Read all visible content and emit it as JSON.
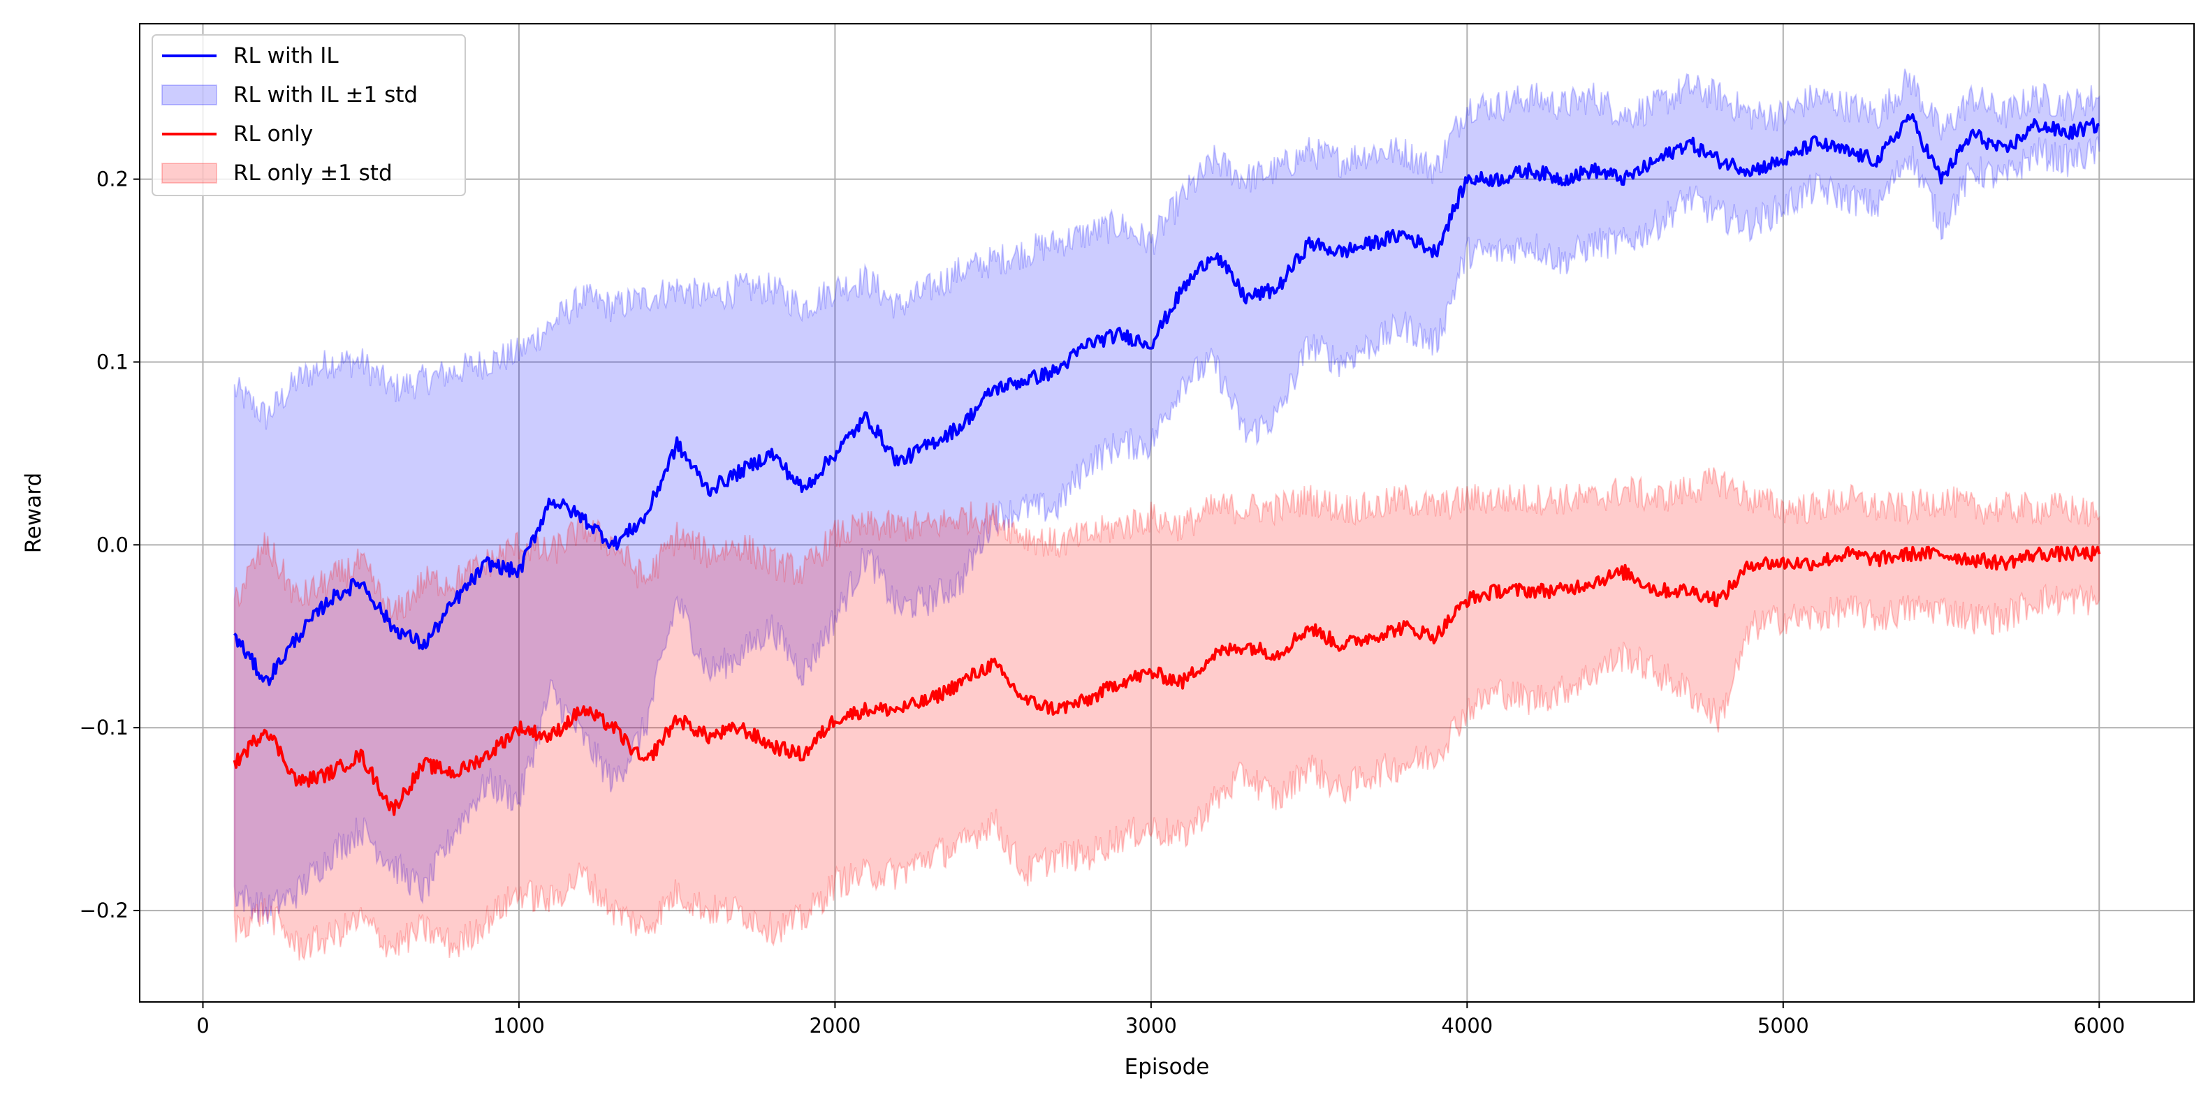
{
  "chart_data": {
    "type": "line",
    "title": "",
    "xlabel": "Episode",
    "ylabel": "Reward",
    "xlim": [
      -200,
      6300
    ],
    "ylim": [
      -0.25,
      0.285
    ],
    "x_ticks": [
      0,
      1000,
      2000,
      3000,
      4000,
      5000,
      6000
    ],
    "x_tick_labels": [
      "0",
      "1000",
      "2000",
      "3000",
      "4000",
      "5000",
      "6000"
    ],
    "y_ticks": [
      -0.2,
      -0.1,
      0.0,
      0.1,
      0.2
    ],
    "y_tick_labels": [
      "−0.2",
      "−0.1",
      "0.0",
      "0.1",
      "0.2"
    ],
    "grid": true,
    "legend_position": "top-left",
    "x": [
      100,
      200,
      300,
      400,
      500,
      600,
      700,
      800,
      900,
      1000,
      1100,
      1200,
      1300,
      1400,
      1500,
      1600,
      1700,
      1800,
      1900,
      2000,
      2100,
      2200,
      2300,
      2400,
      2500,
      2600,
      2700,
      2800,
      2900,
      3000,
      3100,
      3200,
      3300,
      3400,
      3500,
      3600,
      3700,
      3800,
      3900,
      4000,
      4100,
      4200,
      4300,
      4400,
      4500,
      4600,
      4700,
      4800,
      4900,
      5000,
      5100,
      5200,
      5300,
      5400,
      5500,
      5600,
      5700,
      5800,
      5900,
      6000
    ],
    "series": [
      {
        "name": "RL with IL",
        "color": "#0000ff",
        "values": [
          -0.05,
          -0.075,
          -0.05,
          -0.03,
          -0.02,
          -0.045,
          -0.055,
          -0.03,
          -0.01,
          -0.015,
          0.025,
          0.015,
          0.0,
          0.015,
          0.055,
          0.03,
          0.04,
          0.05,
          0.03,
          0.05,
          0.07,
          0.045,
          0.055,
          0.065,
          0.085,
          0.09,
          0.095,
          0.11,
          0.115,
          0.11,
          0.14,
          0.16,
          0.135,
          0.14,
          0.165,
          0.16,
          0.165,
          0.17,
          0.16,
          0.2,
          0.2,
          0.205,
          0.2,
          0.205,
          0.2,
          0.21,
          0.22,
          0.21,
          0.205,
          0.21,
          0.22,
          0.215,
          0.21,
          0.235,
          0.2,
          0.225,
          0.215,
          0.23,
          0.225,
          0.23
        ],
        "std_upper": [
          0.085,
          0.07,
          0.09,
          0.1,
          0.1,
          0.085,
          0.09,
          0.095,
          0.1,
          0.105,
          0.12,
          0.135,
          0.13,
          0.135,
          0.14,
          0.135,
          0.14,
          0.14,
          0.13,
          0.14,
          0.145,
          0.13,
          0.14,
          0.15,
          0.155,
          0.16,
          0.165,
          0.17,
          0.175,
          0.165,
          0.19,
          0.21,
          0.2,
          0.205,
          0.215,
          0.21,
          0.215,
          0.215,
          0.205,
          0.24,
          0.24,
          0.245,
          0.24,
          0.245,
          0.235,
          0.24,
          0.25,
          0.245,
          0.235,
          0.235,
          0.245,
          0.24,
          0.235,
          0.255,
          0.225,
          0.245,
          0.235,
          0.245,
          0.24,
          0.245
        ],
        "std_lower": [
          -0.19,
          -0.2,
          -0.19,
          -0.17,
          -0.155,
          -0.175,
          -0.19,
          -0.155,
          -0.13,
          -0.14,
          -0.08,
          -0.105,
          -0.13,
          -0.1,
          -0.03,
          -0.07,
          -0.06,
          -0.045,
          -0.07,
          -0.04,
          -0.005,
          -0.035,
          -0.03,
          -0.02,
          0.015,
          0.02,
          0.02,
          0.045,
          0.055,
          0.055,
          0.09,
          0.1,
          0.06,
          0.07,
          0.11,
          0.1,
          0.11,
          0.12,
          0.11,
          0.16,
          0.16,
          0.165,
          0.155,
          0.165,
          0.165,
          0.175,
          0.19,
          0.18,
          0.175,
          0.185,
          0.195,
          0.19,
          0.185,
          0.215,
          0.175,
          0.205,
          0.2,
          0.215,
          0.21,
          0.215
        ]
      },
      {
        "name": "RL only",
        "color": "#ff0000",
        "values": [
          -0.12,
          -0.1,
          -0.13,
          -0.125,
          -0.115,
          -0.145,
          -0.12,
          -0.125,
          -0.115,
          -0.1,
          -0.105,
          -0.09,
          -0.1,
          -0.12,
          -0.095,
          -0.105,
          -0.1,
          -0.11,
          -0.115,
          -0.095,
          -0.09,
          -0.09,
          -0.085,
          -0.075,
          -0.065,
          -0.085,
          -0.09,
          -0.085,
          -0.075,
          -0.07,
          -0.075,
          -0.06,
          -0.055,
          -0.06,
          -0.045,
          -0.055,
          -0.05,
          -0.045,
          -0.05,
          -0.03,
          -0.025,
          -0.025,
          -0.025,
          -0.02,
          -0.015,
          -0.025,
          -0.025,
          -0.03,
          -0.01,
          -0.01,
          -0.01,
          -0.005,
          -0.008,
          -0.005,
          -0.005,
          -0.008,
          -0.01,
          -0.005,
          -0.005,
          -0.005
        ],
        "std_upper": [
          -0.03,
          0.0,
          -0.03,
          -0.02,
          -0.01,
          -0.04,
          -0.02,
          -0.02,
          -0.01,
          0.0,
          -0.005,
          0.01,
          0.0,
          -0.02,
          0.005,
          -0.005,
          0.0,
          -0.01,
          -0.015,
          0.005,
          0.01,
          0.01,
          0.01,
          0.015,
          0.015,
          0.005,
          0.0,
          0.005,
          0.01,
          0.015,
          0.01,
          0.02,
          0.02,
          0.02,
          0.025,
          0.02,
          0.02,
          0.025,
          0.02,
          0.025,
          0.025,
          0.025,
          0.025,
          0.025,
          0.03,
          0.025,
          0.03,
          0.035,
          0.025,
          0.02,
          0.02,
          0.025,
          0.02,
          0.02,
          0.025,
          0.02,
          0.02,
          0.02,
          0.02,
          0.015
        ],
        "std_lower": [
          -0.21,
          -0.2,
          -0.22,
          -0.215,
          -0.205,
          -0.22,
          -0.21,
          -0.22,
          -0.205,
          -0.19,
          -0.195,
          -0.18,
          -0.2,
          -0.21,
          -0.19,
          -0.2,
          -0.2,
          -0.21,
          -0.205,
          -0.185,
          -0.18,
          -0.18,
          -0.17,
          -0.165,
          -0.15,
          -0.18,
          -0.17,
          -0.17,
          -0.16,
          -0.155,
          -0.16,
          -0.14,
          -0.125,
          -0.14,
          -0.12,
          -0.135,
          -0.125,
          -0.12,
          -0.115,
          -0.09,
          -0.08,
          -0.085,
          -0.08,
          -0.07,
          -0.06,
          -0.07,
          -0.08,
          -0.095,
          -0.045,
          -0.04,
          -0.04,
          -0.035,
          -0.04,
          -0.035,
          -0.035,
          -0.04,
          -0.04,
          -0.03,
          -0.03,
          -0.03
        ]
      }
    ],
    "legend": [
      {
        "label": "RL with IL",
        "kind": "line",
        "color": "#0000ff"
      },
      {
        "label": "RL with IL ±1 std",
        "kind": "patch",
        "color": "#0000ff"
      },
      {
        "label": "RL only",
        "kind": "line",
        "color": "#ff0000"
      },
      {
        "label": "RL only ±1 std",
        "kind": "patch",
        "color": "#ff0000"
      }
    ]
  }
}
